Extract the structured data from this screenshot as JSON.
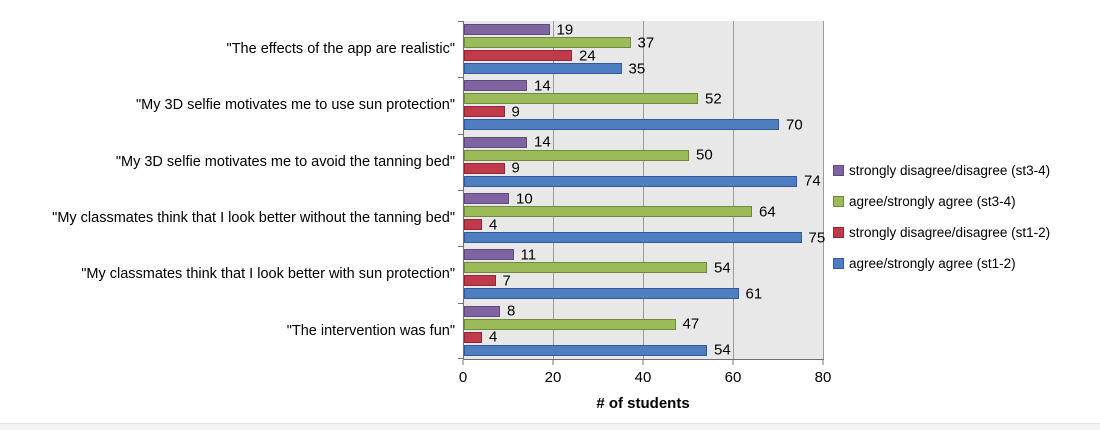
{
  "chart_data": {
    "type": "bar",
    "orientation": "horizontal",
    "title": "",
    "xlabel": "# of students",
    "ylabel": "",
    "xlim": [
      0,
      80
    ],
    "xticks": [
      0,
      20,
      40,
      60,
      80
    ],
    "grid": true,
    "legend_position": "right",
    "plot_background": "#E8E8E8",
    "gridline_color": "#9b9b9b",
    "axis_color": "#707070",
    "categories": [
      "\"The effects of the app are realistic\"",
      "\"My 3D selfie motivates me to use sun protection\"",
      "\"My 3D selfie motivates me to avoid the tanning bed\"",
      "\"My classmates think that I look better without the tanning bed\"",
      "\"My classmates think that I look better with sun protection\"",
      "\"The intervention was fun\""
    ],
    "series": [
      {
        "name": "strongly disagree/disagree (st3-4)",
        "color": "#8064A2",
        "border_color": "#5F4B79",
        "values": [
          19,
          14,
          14,
          10,
          11,
          8
        ]
      },
      {
        "name": "agree/strongly agree (st3-4)",
        "color": "#9BBB59",
        "border_color": "#71893F",
        "values": [
          37,
          52,
          50,
          64,
          54,
          47
        ]
      },
      {
        "name": "strongly disagree/disagree (st1-2)",
        "color": "#C13A4C",
        "border_color": "#8E2A37",
        "values": [
          24,
          9,
          9,
          4,
          7,
          4
        ]
      },
      {
        "name": "agree/strongly agree (st1-2)",
        "color": "#4E7DC0",
        "border_color": "#31599B",
        "values": [
          35,
          70,
          74,
          75,
          61,
          54
        ]
      }
    ]
  }
}
